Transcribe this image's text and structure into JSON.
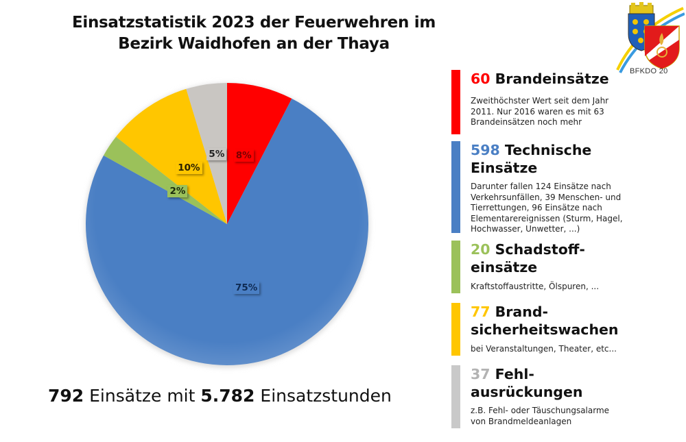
{
  "title": {
    "line1": "Einsatzstatistik 2023 der Feuerwehren im",
    "line2": "Bezirk Waidhofen an der Thaya"
  },
  "logo": {
    "text": "BFKDO 20",
    "icon": "coat-of-arms-logo"
  },
  "summary": {
    "count": "792",
    "count_suffix": " Einsätze mit ",
    "hours": "5.782",
    "hours_suffix": " Einsatzstunden"
  },
  "legend": [
    {
      "number": "60",
      "label_line1": " Brandeinsätze",
      "label_line2": "",
      "description": [
        "Zweithöchster Wert seit dem Jahr",
        "2011. Nur 2016 waren es mit 63",
        "Brandeinsätzen noch mehr"
      ],
      "color": "#ff0000"
    },
    {
      "number": "598",
      "label_line1": " Technische",
      "label_line2": "Einsätze",
      "description": [
        "Darunter fallen 124 Einsätze nach",
        "Verkehrsunfällen, 39 Menschen- und",
        "Tierrettungen, 96 Einsätze nach",
        "Elementarereignissen (Sturm, Hagel,",
        "Hochwasser, Unwetter, ...)"
      ],
      "color": "#4a7fc4"
    },
    {
      "number": "20",
      "label_line1": " Schadstoff-",
      "label_line2": "einsätze",
      "description": [
        "Kraftstoffaustritte, Ölspuren, ..."
      ],
      "color": "#9bc15a"
    },
    {
      "number": "77",
      "label_line1": " Brand-",
      "label_line2": "sicherheitswachen",
      "description": [
        "bei Veranstaltungen, Theater, etc..."
      ],
      "color": "#ffc600"
    },
    {
      "number": "37",
      "label_line1": " Fehl-",
      "label_line2": "ausrückungen",
      "description": [
        "z.B. Fehl- oder Täuschungsalarme",
        "von Brandmeldeanlagen"
      ],
      "color": "#c9c9c9"
    }
  ],
  "chart_data": {
    "type": "pie",
    "title": "Einsatzstatistik 2023 der Feuerwehren im Bezirk Waidhofen an der Thaya",
    "categories": [
      "Brandeinsätze",
      "Technische Einsätze",
      "Schadstoffeinsätze",
      "Brandsicherheitswachen",
      "Fehlausrückungen"
    ],
    "values": [
      60,
      598,
      20,
      77,
      37
    ],
    "data_labels": [
      "8%",
      "75%",
      "2%",
      "10%",
      "5%"
    ],
    "colors": [
      "#ff0000",
      "#4a7fc4",
      "#9bc15a",
      "#ffc600",
      "#c9c6c2"
    ],
    "label_colors": [
      "#7a0000",
      "#0f2a52",
      "#1c2a0c",
      "#2a2000",
      "#222222"
    ],
    "start_angle_deg": 0,
    "direction": "clockwise",
    "total": 792
  }
}
